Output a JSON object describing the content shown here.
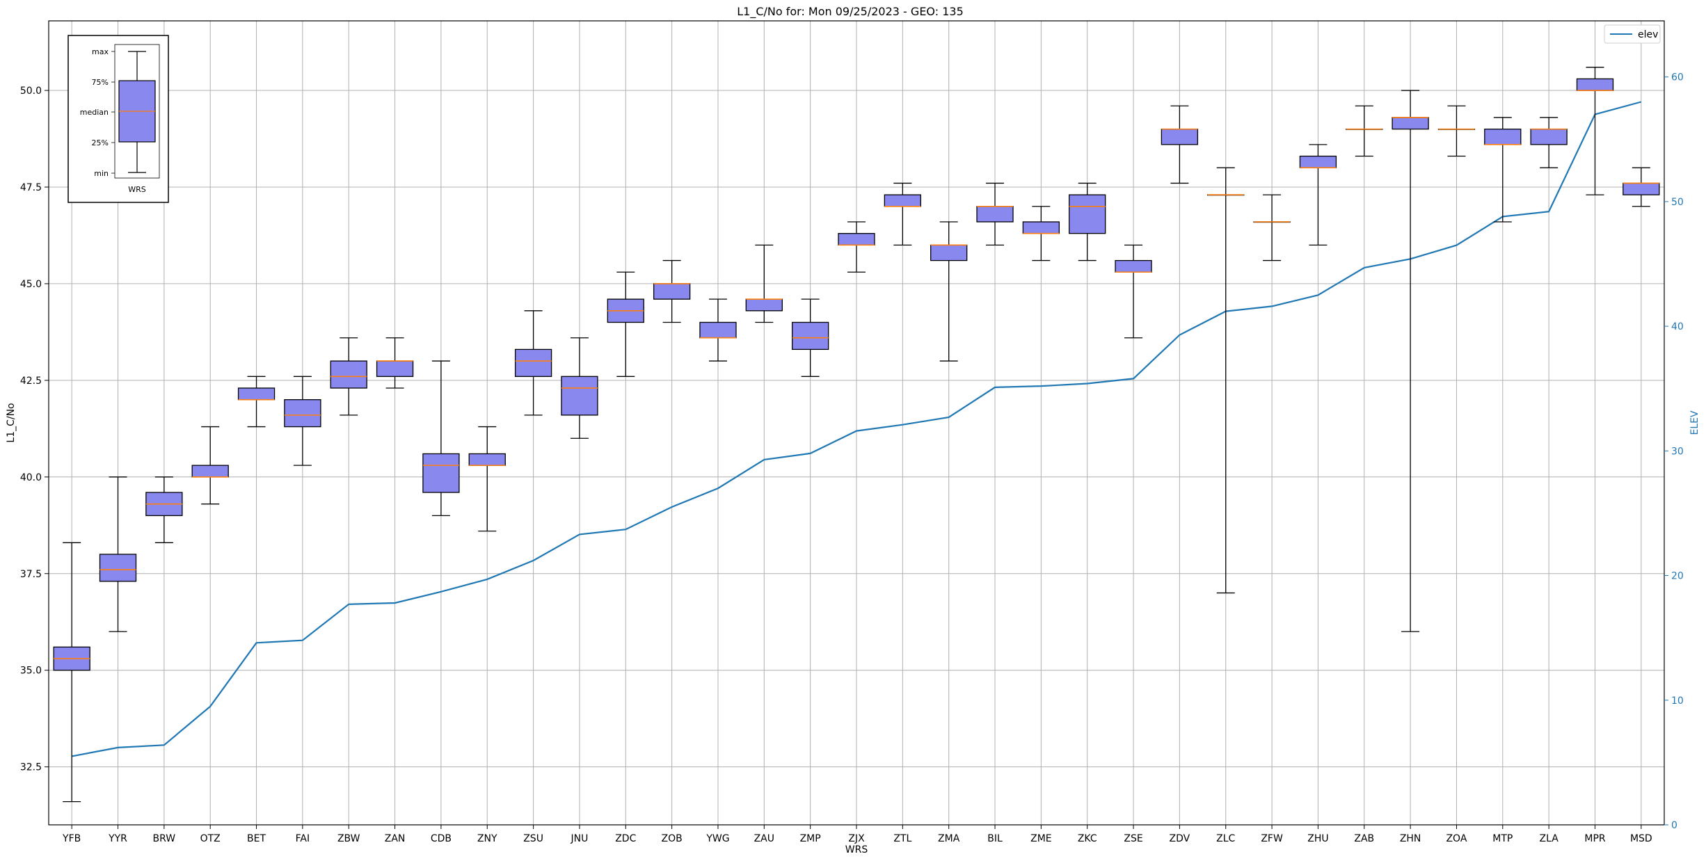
{
  "chart_data": {
    "type": "box",
    "title": "L1_C/No for: Mon 09/25/2023 - GEO: 135",
    "xlabel": "WRS",
    "ylabel": "L1_C/No",
    "y2label": "ELEV",
    "ylim": [
      31.0,
      51.8
    ],
    "y2lim": [
      0,
      64.5
    ],
    "yticks": [
      32.5,
      35.0,
      37.5,
      40.0,
      42.5,
      45.0,
      47.5,
      50.0
    ],
    "yticklabels": [
      "32.5",
      "35.0",
      "37.5",
      "40.0",
      "42.5",
      "45.0",
      "47.5",
      "50.0"
    ],
    "y2ticks": [
      0,
      10,
      20,
      30,
      40,
      50,
      60
    ],
    "y2ticklabels": [
      "0",
      "10",
      "20",
      "30",
      "40",
      "50",
      "60"
    ],
    "grid": true,
    "colors": {
      "box_fill": "#8888ee",
      "median": "#ff7f0e",
      "elev_line": "#1f77b4",
      "axis2": "#1f77b4"
    },
    "categories": [
      "YFB",
      "YYR",
      "BRW",
      "OTZ",
      "BET",
      "FAI",
      "ZBW",
      "ZAN",
      "CDB",
      "ZNY",
      "ZSU",
      "JNU",
      "ZDC",
      "ZOB",
      "YWG",
      "ZAU",
      "ZMP",
      "ZJX",
      "ZTL",
      "ZMA",
      "BIL",
      "ZME",
      "ZKC",
      "ZSE",
      "ZDV",
      "ZLC",
      "ZFW",
      "ZHU",
      "ZAB",
      "ZHN",
      "ZOA",
      "MTP",
      "ZLA",
      "MPR",
      "MSD"
    ],
    "boxes": [
      {
        "min": 31.6,
        "q1": 35.0,
        "median": 35.3,
        "q3": 35.6,
        "max": 38.3
      },
      {
        "min": 36.0,
        "q1": 37.3,
        "median": 37.6,
        "q3": 38.0,
        "max": 40.0
      },
      {
        "min": 38.3,
        "q1": 39.0,
        "median": 39.3,
        "q3": 39.6,
        "max": 40.0
      },
      {
        "min": 39.3,
        "q1": 40.0,
        "median": 40.0,
        "q3": 40.3,
        "max": 41.3
      },
      {
        "min": 41.3,
        "q1": 42.0,
        "median": 42.0,
        "q3": 42.3,
        "max": 42.6
      },
      {
        "min": 40.3,
        "q1": 41.3,
        "median": 41.6,
        "q3": 42.0,
        "max": 42.6
      },
      {
        "min": 41.6,
        "q1": 42.3,
        "median": 42.6,
        "q3": 43.0,
        "max": 43.6
      },
      {
        "min": 42.3,
        "q1": 42.6,
        "median": 43.0,
        "q3": 43.0,
        "max": 43.6
      },
      {
        "min": 39.0,
        "q1": 39.6,
        "median": 40.3,
        "q3": 40.6,
        "max": 43.0
      },
      {
        "min": 38.6,
        "q1": 40.3,
        "median": 40.3,
        "q3": 40.6,
        "max": 41.3
      },
      {
        "min": 41.6,
        "q1": 42.6,
        "median": 43.0,
        "q3": 43.3,
        "max": 44.3
      },
      {
        "min": 41.0,
        "q1": 41.6,
        "median": 42.3,
        "q3": 42.6,
        "max": 43.6
      },
      {
        "min": 42.6,
        "q1": 44.0,
        "median": 44.3,
        "q3": 44.6,
        "max": 45.3
      },
      {
        "min": 44.0,
        "q1": 44.6,
        "median": 45.0,
        "q3": 45.0,
        "max": 45.6
      },
      {
        "min": 43.0,
        "q1": 43.6,
        "median": 43.6,
        "q3": 44.0,
        "max": 44.6
      },
      {
        "min": 44.0,
        "q1": 44.3,
        "median": 44.6,
        "q3": 44.6,
        "max": 46.0
      },
      {
        "min": 42.6,
        "q1": 43.3,
        "median": 43.6,
        "q3": 44.0,
        "max": 44.6
      },
      {
        "min": 45.3,
        "q1": 46.0,
        "median": 46.0,
        "q3": 46.3,
        "max": 46.6
      },
      {
        "min": 46.0,
        "q1": 47.0,
        "median": 47.0,
        "q3": 47.3,
        "max": 47.6
      },
      {
        "min": 43.0,
        "q1": 45.6,
        "median": 46.0,
        "q3": 46.0,
        "max": 46.6
      },
      {
        "min": 46.0,
        "q1": 46.6,
        "median": 47.0,
        "q3": 47.0,
        "max": 47.6
      },
      {
        "min": 45.6,
        "q1": 46.3,
        "median": 46.3,
        "q3": 46.6,
        "max": 47.0
      },
      {
        "min": 45.6,
        "q1": 46.3,
        "median": 47.0,
        "q3": 47.3,
        "max": 47.6
      },
      {
        "min": 43.6,
        "q1": 45.3,
        "median": 45.3,
        "q3": 45.6,
        "max": 46.0
      },
      {
        "min": 47.6,
        "q1": 48.6,
        "median": 49.0,
        "q3": 49.0,
        "max": 49.6
      },
      {
        "min": 37.0,
        "q1": 47.3,
        "median": 47.3,
        "q3": 47.3,
        "max": 48.0
      },
      {
        "min": 45.6,
        "q1": 46.6,
        "median": 46.6,
        "q3": 46.6,
        "max": 47.3
      },
      {
        "min": 46.0,
        "q1": 48.0,
        "median": 48.0,
        "q3": 48.3,
        "max": 48.6
      },
      {
        "min": 48.3,
        "q1": 49.0,
        "median": 49.0,
        "q3": 49.0,
        "max": 49.6
      },
      {
        "min": 36.0,
        "q1": 49.0,
        "median": 49.3,
        "q3": 49.3,
        "max": 50.0
      },
      {
        "min": 48.3,
        "q1": 49.0,
        "median": 49.0,
        "q3": 49.0,
        "max": 49.6
      },
      {
        "min": 46.6,
        "q1": 48.6,
        "median": 48.6,
        "q3": 49.0,
        "max": 49.3
      },
      {
        "min": 48.0,
        "q1": 48.6,
        "median": 49.0,
        "q3": 49.0,
        "max": 49.3
      },
      {
        "min": 47.3,
        "q1": 50.0,
        "median": 50.0,
        "q3": 50.3,
        "max": 50.6
      },
      {
        "min": 47.0,
        "q1": 47.3,
        "median": 47.6,
        "q3": 47.6,
        "max": 48.0
      }
    ],
    "series": [
      {
        "name": "elev",
        "axis": "right",
        "values": [
          5.5,
          6.2,
          6.4,
          9.5,
          14.6,
          14.8,
          17.7,
          17.8,
          18.7,
          19.7,
          21.2,
          23.3,
          23.7,
          25.5,
          27.0,
          29.3,
          29.8,
          31.6,
          32.1,
          32.7,
          35.1,
          35.2,
          35.4,
          35.8,
          39.3,
          41.2,
          41.6,
          42.5,
          44.7,
          45.4,
          46.5,
          48.8,
          49.2,
          57.0,
          58.0
        ]
      }
    ],
    "legend": {
      "position": "top-right",
      "entries": [
        "elev"
      ]
    },
    "inset_legend": {
      "labels": [
        "max",
        "75%",
        "median",
        "25%",
        "min"
      ],
      "xlabel": "WRS"
    }
  }
}
